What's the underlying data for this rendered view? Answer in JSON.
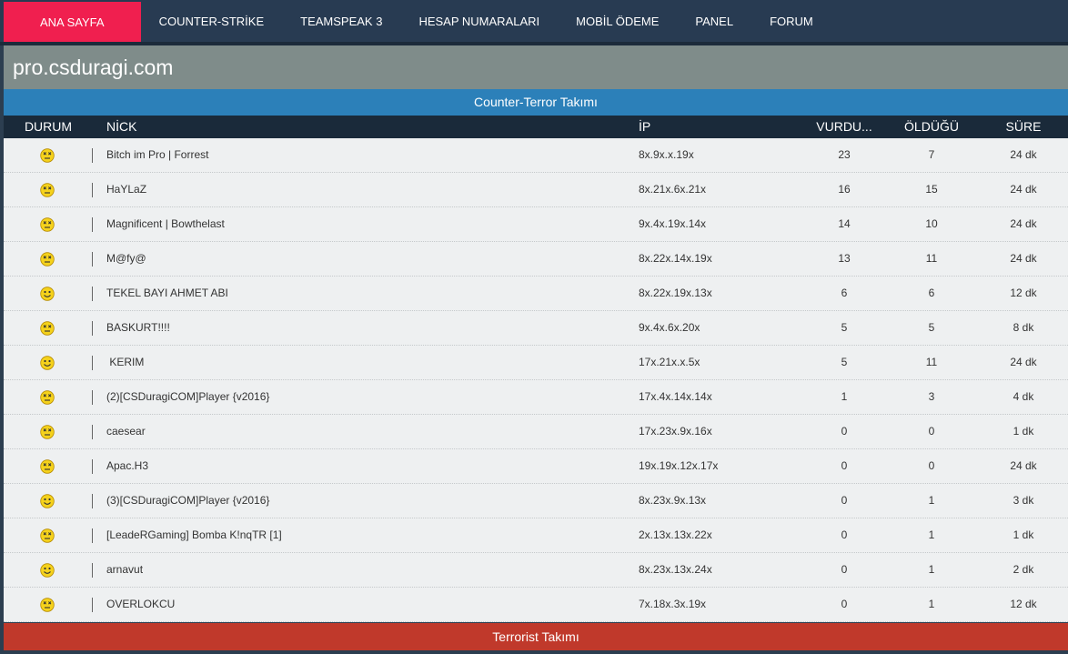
{
  "nav": {
    "items": [
      "ANA SAYFA",
      "COUNTER-STRİKE",
      "TEAMSPEAK 3",
      "HESAP NUMARALARI",
      "MOBİL ÖDEME",
      "PANEL",
      "FORUM"
    ],
    "active": 0
  },
  "header": {
    "title": "pro.csduragi.com"
  },
  "ct_team": {
    "title": "Counter-Terror Takımı"
  },
  "table": {
    "columns": [
      "DURUM",
      "NİCK",
      "İP",
      "VURDU...",
      "ÖLDÜĞÜ",
      "SÜRE"
    ],
    "rows": [
      {
        "alive": false,
        "nick": "Bitch im Pro | Forrest",
        "ip": "8x.9x.x.19x",
        "kills": 23,
        "deaths": 7,
        "time": "24 dk"
      },
      {
        "alive": false,
        "nick": "HaYLaZ",
        "ip": "8x.21x.6x.21x",
        "kills": 16,
        "deaths": 15,
        "time": "24 dk"
      },
      {
        "alive": false,
        "nick": "Magnificent | Bowthelast",
        "ip": "9x.4x.19x.14x",
        "kills": 14,
        "deaths": 10,
        "time": "24 dk"
      },
      {
        "alive": false,
        "nick": "M@fy@",
        "ip": "8x.22x.14x.19x",
        "kills": 13,
        "deaths": 11,
        "time": "24 dk"
      },
      {
        "alive": true,
        "nick": "TEKEL BAYI AHMET ABI",
        "ip": "8x.22x.19x.13x",
        "kills": 6,
        "deaths": 6,
        "time": "12 dk"
      },
      {
        "alive": false,
        "nick": "BASKURT!!!!",
        "ip": "9x.4x.6x.20x",
        "kills": 5,
        "deaths": 5,
        "time": "8 dk"
      },
      {
        "alive": true,
        "nick": " KERIM",
        "ip": "17x.21x.x.5x",
        "kills": 5,
        "deaths": 11,
        "time": "24 dk"
      },
      {
        "alive": false,
        "nick": "(2)[CSDuragiCOM]Player {v2016}",
        "ip": "17x.4x.14x.14x",
        "kills": 1,
        "deaths": 3,
        "time": "4 dk"
      },
      {
        "alive": false,
        "nick": "caesear",
        "ip": "17x.23x.9x.16x",
        "kills": 0,
        "deaths": 0,
        "time": "1 dk"
      },
      {
        "alive": false,
        "nick": "Apac.H3",
        "ip": "19x.19x.12x.17x",
        "kills": 0,
        "deaths": 0,
        "time": "24 dk"
      },
      {
        "alive": true,
        "nick": "(3)[CSDuragiCOM]Player {v2016}",
        "ip": "8x.23x.9x.13x",
        "kills": 0,
        "deaths": 1,
        "time": "3 dk"
      },
      {
        "alive": false,
        "nick": "[LeadeRGaming] Bomba K!nqTR [1]",
        "ip": "2x.13x.13x.22x",
        "kills": 0,
        "deaths": 1,
        "time": "1 dk"
      },
      {
        "alive": true,
        "nick": "arnavut",
        "ip": "8x.23x.13x.24x",
        "kills": 0,
        "deaths": 1,
        "time": "2 dk"
      },
      {
        "alive": false,
        "nick": "OVERLOKCU",
        "ip": "7x.18x.3x.19x",
        "kills": 0,
        "deaths": 1,
        "time": "12 dk"
      }
    ]
  },
  "t_team": {
    "title": "Terrorist Takımı"
  }
}
